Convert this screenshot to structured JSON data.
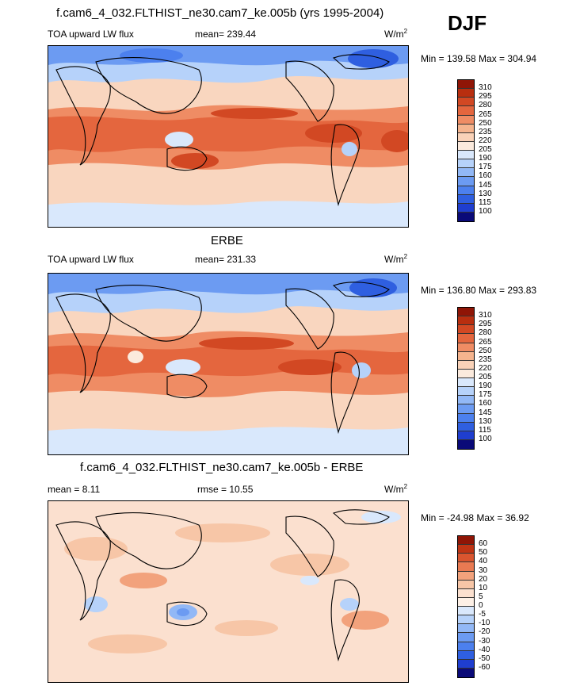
{
  "season": "DJF",
  "colors": {
    "levels10": [
      "#0a0a78",
      "#1f3ecf",
      "#2f5fe0",
      "#4c80ee",
      "#6c9bf2",
      "#92b8f6",
      "#b6d2fa",
      "#d9e8fc",
      "#fbeadd",
      "#f9d2b8",
      "#f5b48e",
      "#ef8c64",
      "#e4663e",
      "#d24823",
      "#b82e0f",
      "#8f1506"
    ],
    "diff": [
      "#0a0a78",
      "#1f3ecf",
      "#2f5fe0",
      "#4c80ee",
      "#6c9bf2",
      "#92b8f6",
      "#b6d2fa",
      "#d9e8fc",
      "#fdf0e6",
      "#fbe0cf",
      "#f7c6a7",
      "#f2a27c",
      "#e97a52",
      "#d9552f",
      "#bf3414",
      "#8f1506"
    ]
  },
  "panels": [
    {
      "id": "model",
      "title": "f.cam6_4_032.FLTHIST_ne30.cam7_ke.005b (yrs 1995-2004)",
      "variable": "TOA upward LW flux",
      "mean_text": "mean= 239.44",
      "rmse_text": "",
      "units": "W/m",
      "units_exp": "2",
      "minmax": "Min = 139.58 Max = 304.94",
      "colorbar_labels": [
        "310",
        "295",
        "280",
        "265",
        "250",
        "235",
        "220",
        "205",
        "190",
        "175",
        "160",
        "145",
        "130",
        "115",
        "100"
      ]
    },
    {
      "id": "obs",
      "title": "ERBE",
      "variable": "TOA upward LW flux",
      "mean_text": "mean= 231.33",
      "rmse_text": "",
      "units": "W/m",
      "units_exp": "2",
      "minmax": "Min = 136.80 Max = 293.83",
      "colorbar_labels": [
        "310",
        "295",
        "280",
        "265",
        "250",
        "235",
        "220",
        "205",
        "190",
        "175",
        "160",
        "145",
        "130",
        "115",
        "100"
      ]
    },
    {
      "id": "diff",
      "title": "f.cam6_4_032.FLTHIST_ne30.cam7_ke.005b - ERBE",
      "variable": "",
      "mean_text": "mean =   8.11",
      "rmse_text": "rmse =  10.55",
      "units": "W/m",
      "units_exp": "2",
      "minmax": "Min = -24.98 Max =  36.92",
      "colorbar_labels": [
        "60",
        "50",
        "40",
        "30",
        "20",
        "10",
        "5",
        "0",
        "-5",
        "-10",
        "-20",
        "-30",
        "-40",
        "-50",
        "-60"
      ]
    }
  ]
}
